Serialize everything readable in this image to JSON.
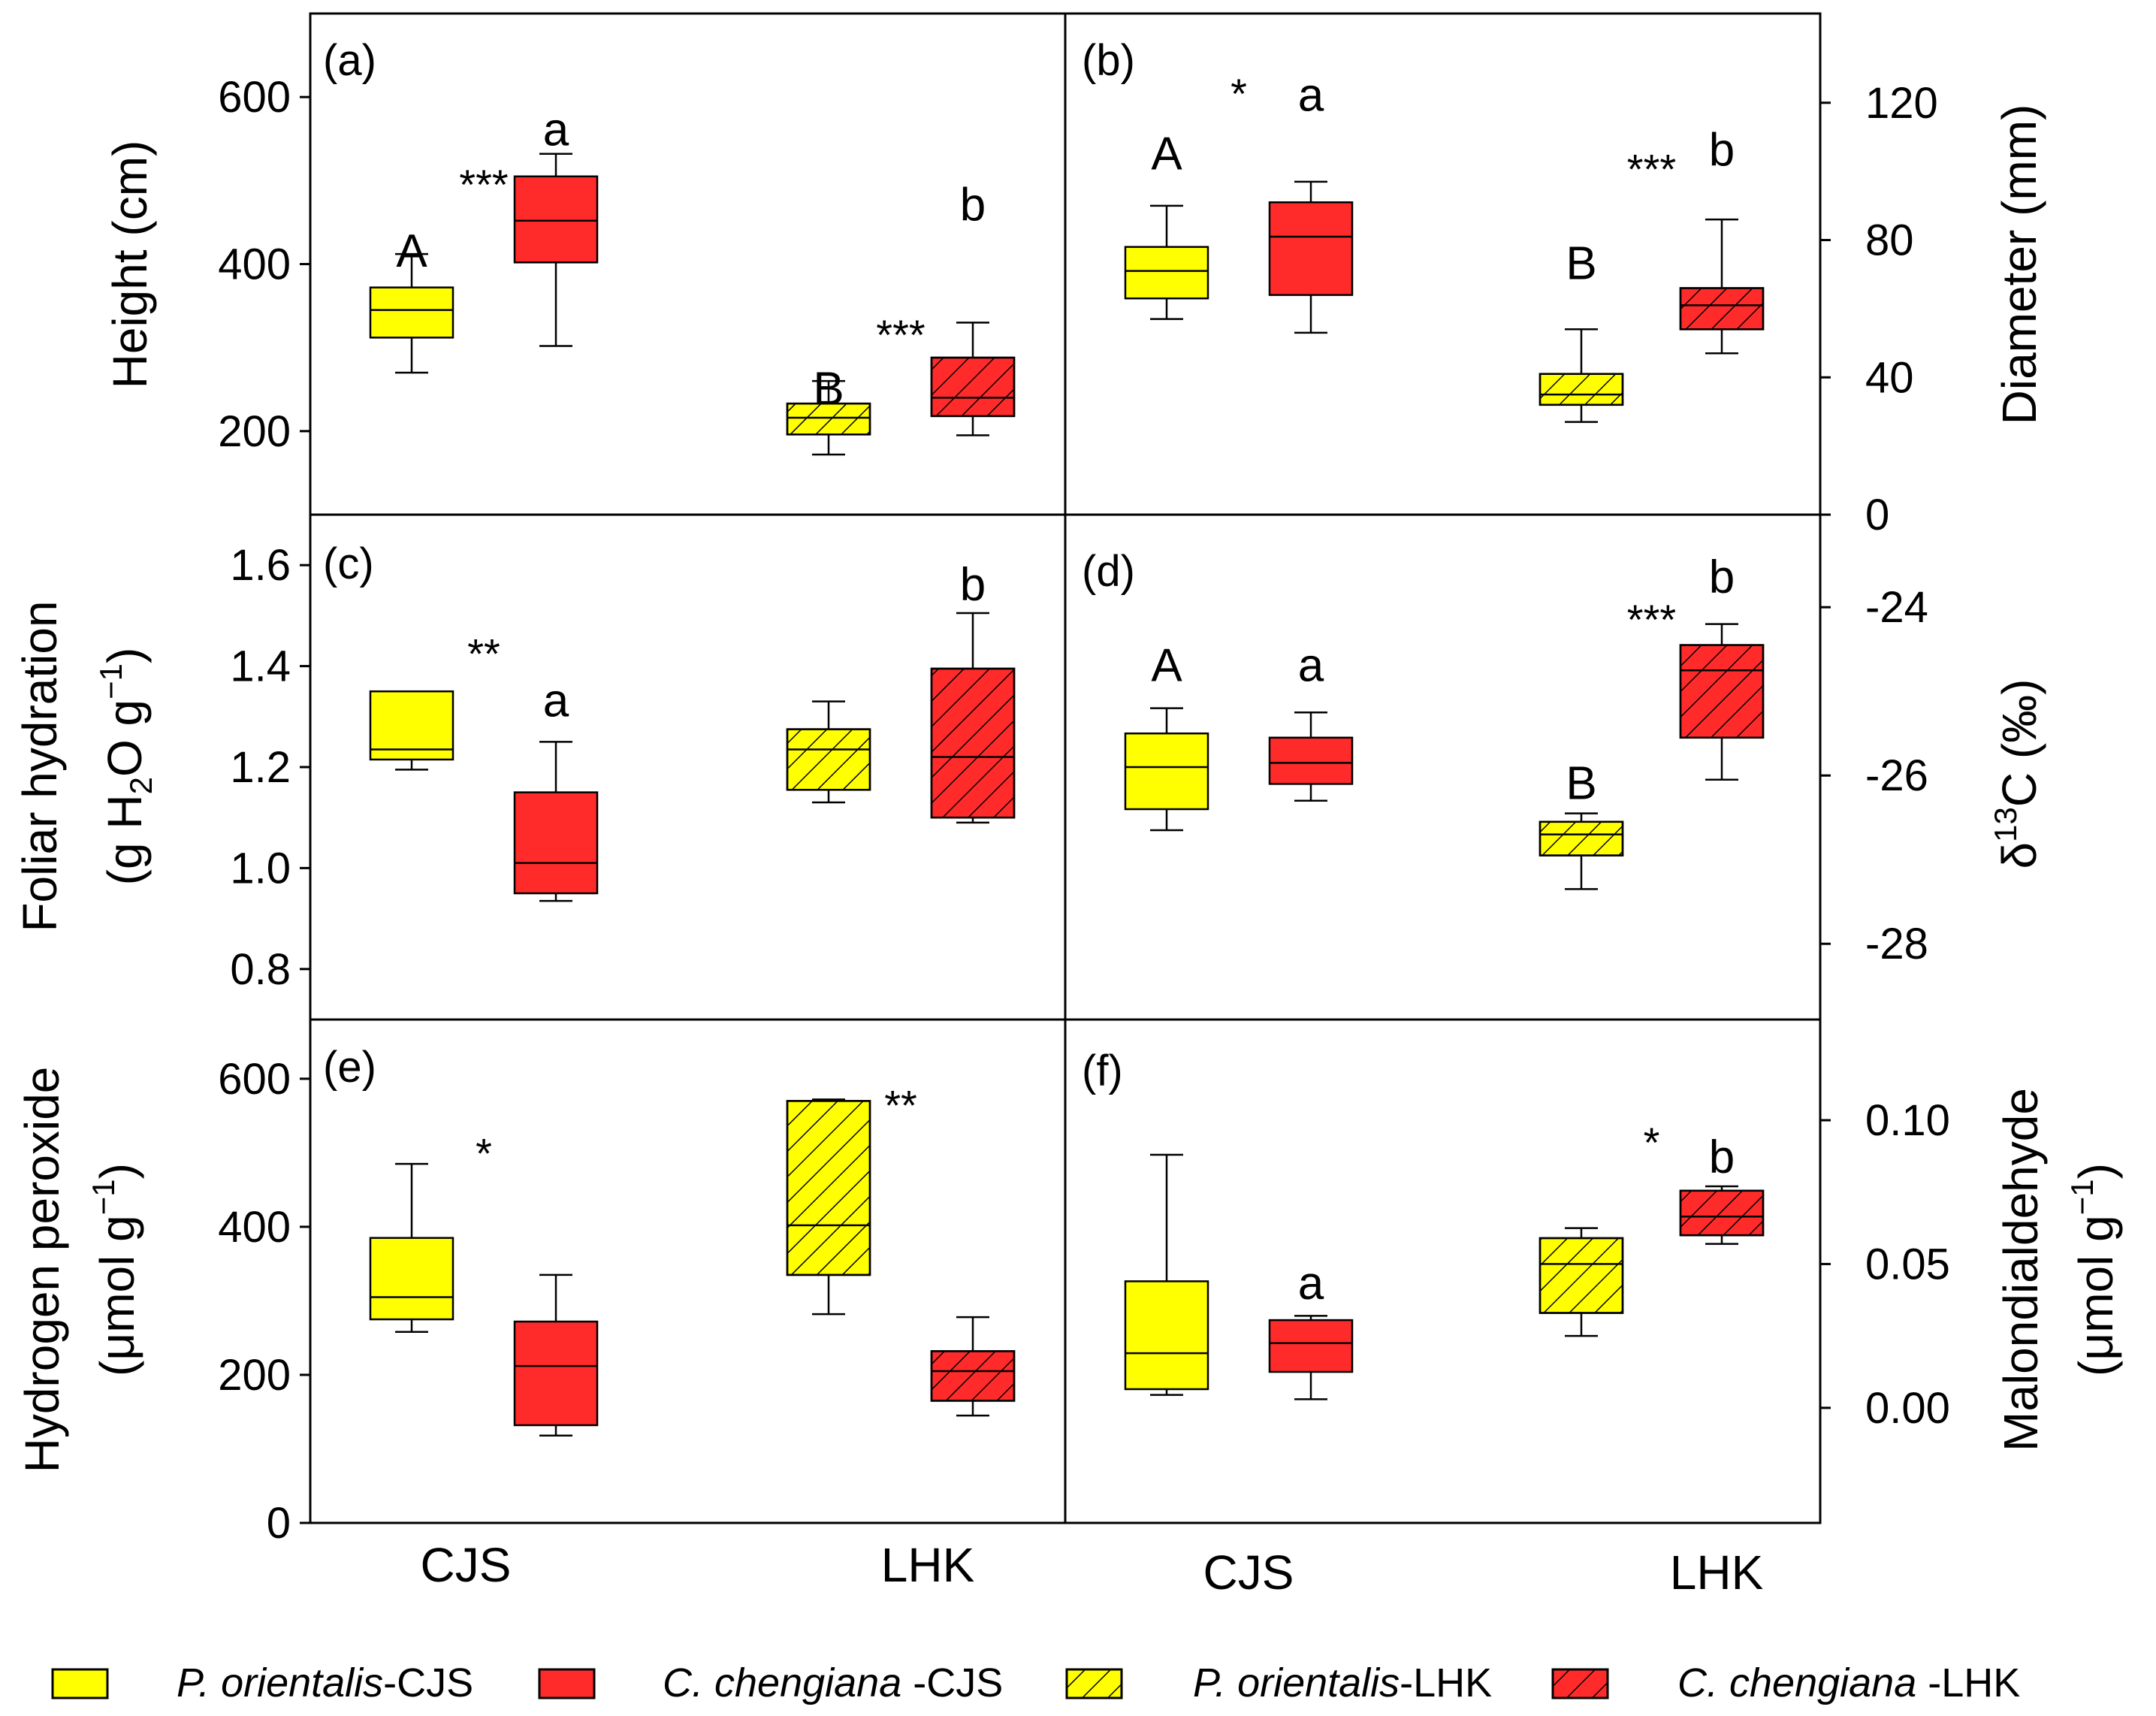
{
  "chart_data": [
    {
      "type": "box",
      "panel": "(a)",
      "ylabel": "Height (cm)",
      "yaxis_side": "left",
      "ylim": [
        100,
        700
      ],
      "yticks": [
        200,
        400,
        600
      ],
      "tick_labels": [
        "200",
        "400",
        "600"
      ],
      "boxes": [
        {
          "group": "P. orientalis-CJS",
          "whisker_low": 270,
          "q1": 312,
          "median": 345,
          "q3": 372,
          "whisker_high": 412
        },
        {
          "group": "C. chengiana -CJS",
          "whisker_low": 302,
          "q1": 402,
          "median": 452,
          "q3": 505,
          "whisker_high": 532
        },
        {
          "group": "P. orientalis-LHK",
          "whisker_low": 172,
          "q1": 196,
          "median": 216,
          "q3": 233,
          "whisker_high": 260
        },
        {
          "group": "C. chengiana -LHK",
          "whisker_low": 195,
          "q1": 218,
          "median": 240,
          "q3": 288,
          "whisker_high": 330
        }
      ],
      "annotations": [
        {
          "text": "A",
          "group": 0,
          "value": 415
        },
        {
          "text": "***",
          "group": 0.5,
          "value": 505
        },
        {
          "text": "a",
          "group": 1,
          "value": 560
        },
        {
          "text": "B",
          "group": 2,
          "value": 250
        },
        {
          "text": "***",
          "group": 2.5,
          "value": 325
        },
        {
          "text": "b",
          "group": 3,
          "value": 470
        }
      ]
    },
    {
      "type": "box",
      "panel": "(b)",
      "ylabel": "Diameter (mm)",
      "yaxis_side": "right",
      "ylim": [
        0,
        146
      ],
      "yticks": [
        0,
        40,
        80,
        120
      ],
      "tick_labels": [
        "0",
        "40",
        "80",
        "120"
      ],
      "boxes": [
        {
          "group": "P. orientalis-CJS",
          "whisker_low": 57,
          "q1": 63,
          "median": 71,
          "q3": 78,
          "whisker_high": 90
        },
        {
          "group": "C. chengiana -CJS",
          "whisker_low": 53,
          "q1": 64,
          "median": 81,
          "q3": 91,
          "whisker_high": 97
        },
        {
          "group": "P. orientalis-LHK",
          "whisker_low": 27,
          "q1": 32,
          "median": 35,
          "q3": 41,
          "whisker_high": 54
        },
        {
          "group": "C. chengiana -LHK",
          "whisker_low": 47,
          "q1": 54,
          "median": 61,
          "q3": 66,
          "whisker_high": 86
        }
      ],
      "annotations": [
        {
          "text": "A",
          "group": 0,
          "value": 105
        },
        {
          "text": "*",
          "group": 0.5,
          "value": 125
        },
        {
          "text": "a",
          "group": 1,
          "value": 122
        },
        {
          "text": "B",
          "group": 2,
          "value": 73
        },
        {
          "text": "***",
          "group": 2.5,
          "value": 103
        },
        {
          "text": "b",
          "group": 3,
          "value": 106
        }
      ]
    },
    {
      "type": "box",
      "panel": "(c)",
      "ylabel": "Foliar hydration (g H2O g-1)",
      "yaxis_side": "left",
      "ylim": [
        0.7,
        1.7
      ],
      "yticks": [
        0.8,
        1.0,
        1.2,
        1.4,
        1.6
      ],
      "tick_labels": [
        "0.8",
        "1.0",
        "1.2",
        "1.4",
        "1.6"
      ],
      "boxes": [
        {
          "group": "P. orientalis-CJS",
          "whisker_low": 1.195,
          "q1": 1.215,
          "median": 1.235,
          "q3": 1.35,
          "whisker_high": 1.35
        },
        {
          "group": "C. chengiana -CJS",
          "whisker_low": 0.935,
          "q1": 0.95,
          "median": 1.01,
          "q3": 1.15,
          "whisker_high": 1.25
        },
        {
          "group": "P. orientalis-LHK",
          "whisker_low": 1.13,
          "q1": 1.155,
          "median": 1.235,
          "q3": 1.275,
          "whisker_high": 1.33
        },
        {
          "group": "C. chengiana -LHK",
          "whisker_low": 1.09,
          "q1": 1.1,
          "median": 1.22,
          "q3": 1.395,
          "whisker_high": 1.505
        }
      ],
      "annotations": [
        {
          "text": "**",
          "group": 0.5,
          "value": 1.44
        },
        {
          "text": "a",
          "group": 1,
          "value": 1.33
        },
        {
          "text": "b",
          "group": 3,
          "value": 1.56
        }
      ]
    },
    {
      "type": "box",
      "panel": "(d)",
      "ylabel": "δ13C (‰)",
      "yaxis_side": "right",
      "ylim": [
        -28.9,
        -22.9
      ],
      "yticks": [
        -28,
        -26,
        -24
      ],
      "tick_labels": [
        "-28",
        "-26",
        "-24"
      ],
      "boxes": [
        {
          "group": "P. orientalis-CJS",
          "whisker_low": -26.65,
          "q1": -26.4,
          "median": -25.9,
          "q3": -25.5,
          "whisker_high": -25.2
        },
        {
          "group": "C. chengiana -CJS",
          "whisker_low": -26.3,
          "q1": -26.1,
          "median": -25.85,
          "q3": -25.55,
          "whisker_high": -25.25
        },
        {
          "group": "P. orientalis-LHK",
          "whisker_low": -27.35,
          "q1": -26.95,
          "median": -26.7,
          "q3": -26.55,
          "whisker_high": -26.45
        },
        {
          "group": "C. chengiana -LHK",
          "whisker_low": -26.05,
          "q1": -25.55,
          "median": -24.75,
          "q3": -24.45,
          "whisker_high": -24.2
        }
      ],
      "annotations": [
        {
          "text": "A",
          "group": 0,
          "value": -24.7
        },
        {
          "text": "a",
          "group": 1,
          "value": -24.7
        },
        {
          "text": "B",
          "group": 2,
          "value": -26.1
        },
        {
          "text": "***",
          "group": 2.5,
          "value": -24.05
        },
        {
          "text": "b",
          "group": 3,
          "value": -23.65
        }
      ]
    },
    {
      "type": "box",
      "panel": "(e)",
      "ylabel": "Hydrogen peroxide (μmol g-1)",
      "yaxis_side": "left",
      "ylim": [
        0,
        680
      ],
      "yticks": [
        0,
        200,
        400,
        600
      ],
      "tick_labels": [
        "0",
        "200",
        "400",
        "600"
      ],
      "boxes": [
        {
          "group": "P. orientalis-CJS",
          "whisker_low": 258,
          "q1": 275,
          "median": 305,
          "q3": 385,
          "whisker_high": 485
        },
        {
          "group": "C. chengiana -CJS",
          "whisker_low": 118,
          "q1": 132,
          "median": 212,
          "q3": 272,
          "whisker_high": 335
        },
        {
          "group": "P. orientalis-LHK",
          "whisker_low": 282,
          "q1": 335,
          "median": 402,
          "q3": 570,
          "whisker_high": 572
        },
        {
          "group": "C. chengiana -LHK",
          "whisker_low": 145,
          "q1": 165,
          "median": 205,
          "q3": 232,
          "whisker_high": 278
        }
      ],
      "annotations": [
        {
          "text": "*",
          "group": 0.5,
          "value": 510
        },
        {
          "text": "**",
          "group": 2.5,
          "value": 575
        }
      ]
    },
    {
      "type": "box",
      "panel": "(f)",
      "ylabel": "Malondialdehyde (μmol g-1)",
      "yaxis_side": "right",
      "ylim": [
        -0.04,
        0.135
      ],
      "yticks": [
        0.0,
        0.05,
        0.1
      ],
      "tick_labels": [
        "0.00",
        "0.05",
        "0.10"
      ],
      "boxes": [
        {
          "group": "P. orientalis-CJS",
          "whisker_low": 0.0045,
          "q1": 0.0065,
          "median": 0.019,
          "q3": 0.044,
          "whisker_high": 0.088
        },
        {
          "group": "C. chengiana -CJS",
          "whisker_low": 0.003,
          "q1": 0.0125,
          "median": 0.0225,
          "q3": 0.0305,
          "whisker_high": 0.032
        },
        {
          "group": "P. orientalis-LHK",
          "whisker_low": 0.025,
          "q1": 0.033,
          "median": 0.05,
          "q3": 0.059,
          "whisker_high": 0.0625
        },
        {
          "group": "C. chengiana -LHK",
          "whisker_low": 0.057,
          "q1": 0.06,
          "median": 0.0665,
          "q3": 0.0755,
          "whisker_high": 0.077
        }
      ],
      "annotations": [
        {
          "text": "a",
          "group": 1,
          "value": 0.043
        },
        {
          "text": "*",
          "group": 2.5,
          "value": 0.095
        },
        {
          "text": "b",
          "group": 3,
          "value": 0.087
        }
      ]
    }
  ],
  "x_categories": [
    "CJS",
    "LHK"
  ],
  "legend": [
    {
      "species": "P. orientalis",
      "site": "-CJS",
      "color": "#ffff00",
      "hatched": false
    },
    {
      "species": "C. chengiana ",
      "site": "-CJS",
      "color": "#ff2b2b",
      "hatched": false
    },
    {
      "species": "P. orientalis",
      "site": "-LHK",
      "color": "#ffff00",
      "hatched": true
    },
    {
      "species": "C. chengiana ",
      "site": "-LHK",
      "color": "#ff2b2b",
      "hatched": true
    }
  ],
  "colors": {
    "yellow": "#ffff00",
    "red": "#ff2b2b",
    "line": "#000000"
  }
}
